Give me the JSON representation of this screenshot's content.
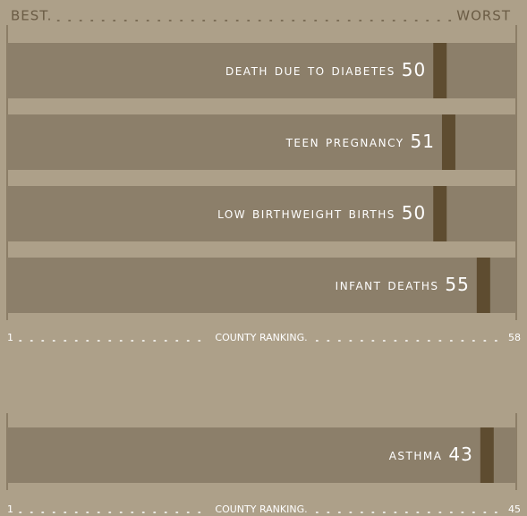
{
  "chart_data": [
    {
      "type": "ranking",
      "best_label": "BEST.",
      "worst_label": "WORST",
      "categories": [
        "death due to diabetes",
        "teen pregnancy",
        "low birthweight births",
        "infant deaths"
      ],
      "values": [
        50,
        51,
        50,
        55
      ],
      "xlim": [
        1,
        58
      ],
      "xticks": [
        1,
        58
      ],
      "xlabel": "COUNTY RANKING.",
      "row_color": "#8c7f6a",
      "color": "#5e4c30"
    },
    {
      "type": "ranking",
      "categories": [
        "asthma"
      ],
      "values": [
        43
      ],
      "xlim": [
        1,
        45
      ],
      "xticks": [
        1,
        45
      ],
      "xlabel": "COUNTY RANKING.",
      "row_color": "#8c7f6a",
      "color": "#5e4c30"
    }
  ]
}
